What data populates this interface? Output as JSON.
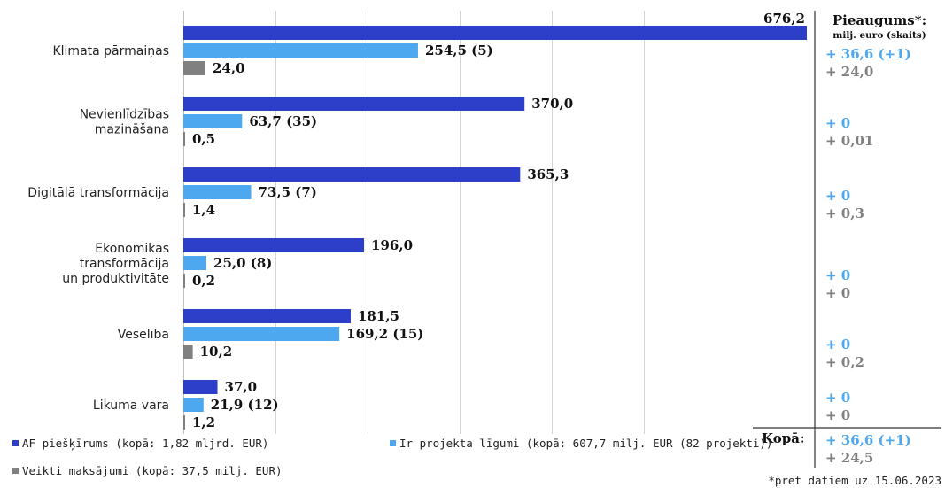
{
  "chart_data": {
    "type": "bar",
    "orientation": "horizontal",
    "categories": [
      [
        "Klimata pārmaiņas"
      ],
      [
        "Nevienlīdzības",
        "mazināšana"
      ],
      [
        "Digitālā transformācija"
      ],
      [
        "Ekonomikas",
        "transformācija",
        "un produktivitāte"
      ],
      [
        "Veselība"
      ],
      [
        "Likuma vara"
      ]
    ],
    "xlim": [
      0,
      676.2
    ],
    "grid": true,
    "legend_position": "bottom",
    "series": [
      {
        "name": "AF piešķīrums (kopā: 1,82 mljrd. EUR)",
        "color": "#2d3ec8",
        "values": [
          676.2,
          370.0,
          365.3,
          196.0,
          181.5,
          37.0
        ],
        "labels": [
          "676,2",
          "370,0",
          "365,3",
          "196,0",
          "181,5",
          "37,0"
        ]
      },
      {
        "name": "Ir projekta līgumi (kopā: 607,7 milj. EUR (82 projekti))",
        "color": "#4da8f0",
        "values": [
          254.5,
          63.7,
          73.5,
          25.0,
          169.2,
          21.9
        ],
        "labels": [
          "254,5 (5)",
          "63,7 (35)",
          "73,5 (7)",
          "25,0 (8)",
          "169,2 (15)",
          "21,9 (12)"
        ]
      },
      {
        "name": "Veikti maksājumi (kopā: 37,5 milj. EUR)",
        "color": "#808080",
        "values": [
          24.0,
          0.5,
          1.4,
          0.2,
          10.2,
          1.2
        ],
        "labels": [
          "24,0",
          "0,5",
          "1,4",
          "0,2",
          "10,2",
          "1,2"
        ]
      }
    ],
    "side_panel": {
      "title": "Pieaugums*:",
      "subtitle": "milj. euro (skaits)",
      "blue_color": "#4da8f0",
      "gray_color": "#808080",
      "rows": [
        {
          "blue": "+ 36,6 (+1)",
          "gray": "+ 24,0"
        },
        {
          "blue": "+ 0",
          "gray": "+ 0,01"
        },
        {
          "blue": "+ 0",
          "gray": "+ 0,3"
        },
        {
          "blue": "+ 0",
          "gray": "+ 0"
        },
        {
          "blue": "+ 0",
          "gray": "+ 0,2"
        },
        {
          "blue": "+ 0",
          "gray": "+ 0"
        }
      ],
      "total_label": "Kopā:",
      "total_blue": "+ 36,6 (+1)",
      "total_gray": "+ 24,5"
    },
    "footnote": "*pret datiem uz 15.06.2023"
  }
}
